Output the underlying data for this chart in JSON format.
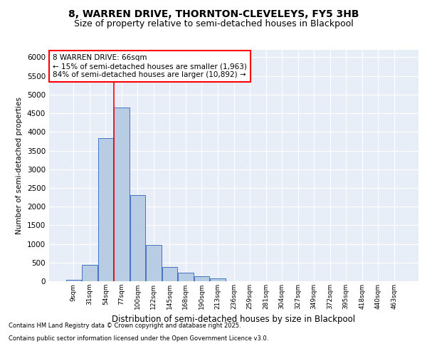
{
  "title1": "8, WARREN DRIVE, THORNTON-CLEVELEYS, FY5 3HB",
  "title2": "Size of property relative to semi-detached houses in Blackpool",
  "xlabel": "Distribution of semi-detached houses by size in Blackpool",
  "ylabel": "Number of semi-detached properties",
  "bins": [
    "9sqm",
    "31sqm",
    "54sqm",
    "77sqm",
    "100sqm",
    "122sqm",
    "145sqm",
    "168sqm",
    "190sqm",
    "213sqm",
    "236sqm",
    "259sqm",
    "281sqm",
    "304sqm",
    "327sqm",
    "349sqm",
    "372sqm",
    "395sqm",
    "418sqm",
    "440sqm",
    "463sqm"
  ],
  "values": [
    30,
    430,
    3840,
    4650,
    2300,
    970,
    380,
    230,
    130,
    80,
    0,
    0,
    0,
    0,
    0,
    0,
    0,
    0,
    0,
    0,
    0
  ],
  "bar_color": "#b8cce4",
  "bar_edge_color": "#4472c4",
  "vline_x": 2.5,
  "vline_color": "red",
  "annotation_text": "8 WARREN DRIVE: 66sqm\n← 15% of semi-detached houses are smaller (1,963)\n84% of semi-detached houses are larger (10,892) →",
  "annotation_box_color": "white",
  "annotation_box_edge": "red",
  "ylim": [
    0,
    6200
  ],
  "yticks": [
    0,
    500,
    1000,
    1500,
    2000,
    2500,
    3000,
    3500,
    4000,
    4500,
    5000,
    5500,
    6000
  ],
  "bg_color": "#e8eef7",
  "footer1": "Contains HM Land Registry data © Crown copyright and database right 2025.",
  "footer2": "Contains public sector information licensed under the Open Government Licence v3.0.",
  "title_fontsize": 10,
  "subtitle_fontsize": 9
}
